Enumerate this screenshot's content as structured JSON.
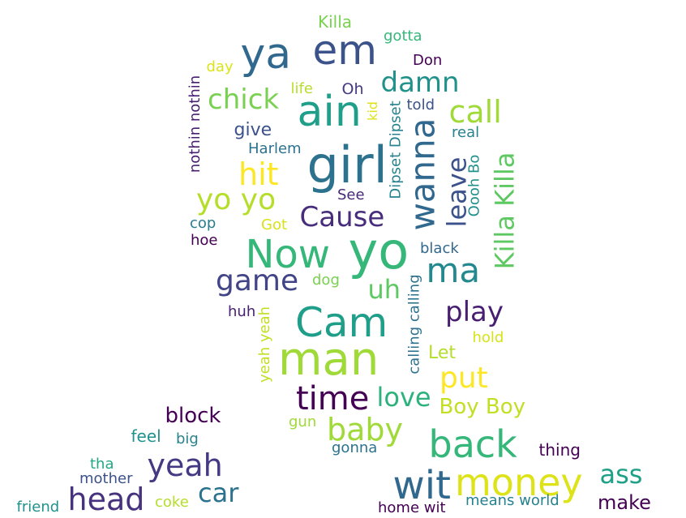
{
  "words": [
    {
      "text": "Killa",
      "color": "#7ad151"
    },
    {
      "text": "gotta",
      "color": "#35b779"
    },
    {
      "text": "ya",
      "color": "#31688e"
    },
    {
      "text": "em",
      "color": "#3b528b"
    },
    {
      "text": "day",
      "color": "#dde318"
    },
    {
      "text": "Don",
      "color": "#440154"
    },
    {
      "text": "damn",
      "color": "#21918c"
    },
    {
      "text": "life",
      "color": "#b5de2b"
    },
    {
      "text": "Oh",
      "color": "#443983"
    },
    {
      "text": "chick",
      "color": "#7ad151"
    },
    {
      "text": "ain",
      "color": "#1f9e89"
    },
    {
      "text": "kid",
      "color": "#dde318"
    },
    {
      "text": "told",
      "color": "#3b528b"
    },
    {
      "text": "call",
      "color": "#a0da39"
    },
    {
      "text": "nothin nothin",
      "color": "#481f70"
    },
    {
      "text": "give",
      "color": "#3b528b"
    },
    {
      "text": "Dipset Dipset",
      "color": "#26828e"
    },
    {
      "text": "real",
      "color": "#26828e"
    },
    {
      "text": "Harlem",
      "color": "#2c728e"
    },
    {
      "text": "girl",
      "color": "#2c728e"
    },
    {
      "text": "wanna",
      "color": "#31688e"
    },
    {
      "text": "Oooh Bo",
      "color": "#21918c"
    },
    {
      "text": "hit",
      "color": "#fde725"
    },
    {
      "text": "leave",
      "color": "#3b528b"
    },
    {
      "text": "Killa Killa",
      "color": "#5ec962"
    },
    {
      "text": "yo yo",
      "color": "#b5de2b"
    },
    {
      "text": "See",
      "color": "#482878"
    },
    {
      "text": "Cause",
      "color": "#472d7b"
    },
    {
      "text": "cop",
      "color": "#287c8e"
    },
    {
      "text": "Got",
      "color": "#d8e219"
    },
    {
      "text": "hoe",
      "color": "#440154"
    },
    {
      "text": "yo",
      "color": "#35b779"
    },
    {
      "text": "black",
      "color": "#31688e"
    },
    {
      "text": "Now",
      "color": "#35b779"
    },
    {
      "text": "ma",
      "color": "#23898e"
    },
    {
      "text": "game",
      "color": "#414487"
    },
    {
      "text": "dog",
      "color": "#7ad151"
    },
    {
      "text": "uh",
      "color": "#5ec962"
    },
    {
      "text": "calling calling",
      "color": "#2c728e"
    },
    {
      "text": "huh",
      "color": "#482173"
    },
    {
      "text": "yeah yeah",
      "color": "#c2df23"
    },
    {
      "text": "play",
      "color": "#481f70"
    },
    {
      "text": "Cam",
      "color": "#1f9e89"
    },
    {
      "text": "hold",
      "color": "#d8e219"
    },
    {
      "text": "man",
      "color": "#a0da39"
    },
    {
      "text": "Let",
      "color": "#b5de2b"
    },
    {
      "text": "put",
      "color": "#fde725"
    },
    {
      "text": "time",
      "color": "#440154"
    },
    {
      "text": "love",
      "color": "#2db27d"
    },
    {
      "text": "Boy Boy",
      "color": "#c2df23"
    },
    {
      "text": "block",
      "color": "#440154"
    },
    {
      "text": "gun",
      "color": "#a0da39"
    },
    {
      "text": "baby",
      "color": "#a0da39"
    },
    {
      "text": "feel",
      "color": "#21918c"
    },
    {
      "text": "big",
      "color": "#26828e"
    },
    {
      "text": "back",
      "color": "#35b779"
    },
    {
      "text": "gonna",
      "color": "#2c728e"
    },
    {
      "text": "thing",
      "color": "#440154"
    },
    {
      "text": "yeah",
      "color": "#443983"
    },
    {
      "text": "tha",
      "color": "#22a884"
    },
    {
      "text": "mother",
      "color": "#3b528b"
    },
    {
      "text": "money",
      "color": "#dde318"
    },
    {
      "text": "ass",
      "color": "#1fa188"
    },
    {
      "text": "wit",
      "color": "#31688e"
    },
    {
      "text": "head",
      "color": "#46327e"
    },
    {
      "text": "car",
      "color": "#2c728e"
    },
    {
      "text": "friend",
      "color": "#21918c"
    },
    {
      "text": "coke",
      "color": "#b5de2b"
    },
    {
      "text": "home wit",
      "color": "#440154"
    },
    {
      "text": "means world",
      "color": "#26828e"
    },
    {
      "text": "make",
      "color": "#440154"
    }
  ]
}
